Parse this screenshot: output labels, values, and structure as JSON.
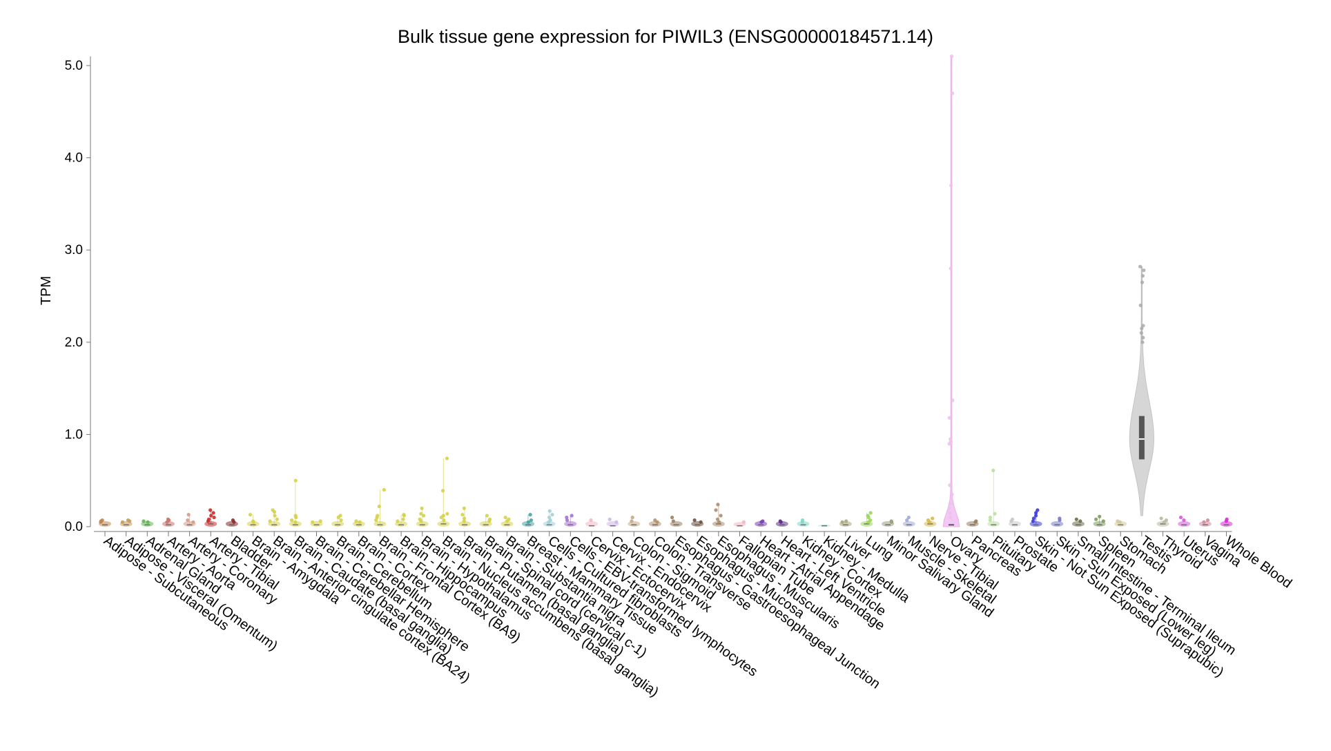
{
  "chart_data": {
    "type": "violin",
    "title": "Bulk tissue gene expression for PIWIL3 (ENSG00000184571.14)",
    "xlabel": "",
    "ylabel": "TPM",
    "ylim": [
      0,
      5.1
    ],
    "yticks": [
      "0.0",
      "1.0",
      "2.0",
      "3.0",
      "4.0",
      "5.0"
    ],
    "grid": false,
    "legend": "none",
    "tissues": [
      {
        "name": "Adipose - Subcutaneous",
        "color": "#c0864e",
        "median": 0.02,
        "max": 0.07,
        "points": [
          0.05,
          0.07,
          0.06
        ]
      },
      {
        "name": "Adipose - Visceral (Omentum)",
        "color": "#c99a58",
        "median": 0.02,
        "max": 0.07,
        "points": [
          0.06,
          0.07,
          0.05
        ]
      },
      {
        "name": "Adrenal Gland",
        "color": "#5fb84e",
        "median": 0.02,
        "max": 0.06,
        "points": [
          0.06,
          0.05
        ]
      },
      {
        "name": "Artery - Aorta",
        "color": "#c9736b",
        "median": 0.02,
        "max": 0.08,
        "points": [
          0.07,
          0.08,
          0.05
        ]
      },
      {
        "name": "Artery - Coronary",
        "color": "#d69a88",
        "median": 0.02,
        "max": 0.13,
        "points": [
          0.13,
          0.07,
          0.05
        ]
      },
      {
        "name": "Artery - Tibial",
        "color": "#cc2a2a",
        "median": 0.03,
        "max": 0.18,
        "points": [
          0.18,
          0.15,
          0.12,
          0.1,
          0.08,
          0.06
        ]
      },
      {
        "name": "Bladder",
        "color": "#8b2a2a",
        "median": 0.02,
        "max": 0.07,
        "points": [
          0.07,
          0.05
        ]
      },
      {
        "name": "Brain - Amygdala",
        "color": "#d4d24a",
        "median": 0.02,
        "max": 0.13,
        "points": [
          0.13,
          0.06,
          0.05
        ]
      },
      {
        "name": "Brain - Anterior cingulate cortex (BA24)",
        "color": "#d4d24a",
        "median": 0.02,
        "max": 0.18,
        "points": [
          0.18,
          0.16,
          0.12,
          0.08,
          0.06
        ]
      },
      {
        "name": "Brain - Caudate (basal ganglia)",
        "color": "#d4d24a",
        "median": 0.02,
        "max": 0.5,
        "points": [
          0.5,
          0.12,
          0.1,
          0.07,
          0.05
        ]
      },
      {
        "name": "Brain - Cerebellar Hemisphere",
        "color": "#d4d24a",
        "median": 0.02,
        "max": 0.06,
        "points": [
          0.06,
          0.05
        ]
      },
      {
        "name": "Brain - Cerebellum",
        "color": "#d4d24a",
        "median": 0.02,
        "max": 0.12,
        "points": [
          0.12,
          0.1,
          0.07
        ]
      },
      {
        "name": "Brain - Cortex",
        "color": "#d4d24a",
        "median": 0.02,
        "max": 0.06,
        "points": [
          0.06,
          0.05
        ]
      },
      {
        "name": "Brain - Frontal Cortex (BA9)",
        "color": "#d4d24a",
        "median": 0.02,
        "max": 0.4,
        "points": [
          0.4,
          0.22,
          0.12,
          0.1,
          0.07
        ]
      },
      {
        "name": "Brain - Hippocampus",
        "color": "#d4d24a",
        "median": 0.02,
        "max": 0.13,
        "points": [
          0.13,
          0.12,
          0.08,
          0.06
        ]
      },
      {
        "name": "Brain - Hypothalamus",
        "color": "#d4d24a",
        "median": 0.02,
        "max": 0.2,
        "points": [
          0.2,
          0.14,
          0.12,
          0.08,
          0.06
        ]
      },
      {
        "name": "Brain - Nucleus accumbens (basal ganglia)",
        "color": "#d4d24a",
        "median": 0.03,
        "max": 0.74,
        "points": [
          0.74,
          0.39,
          0.14,
          0.12,
          0.1,
          0.07
        ]
      },
      {
        "name": "Brain - Putamen (basal ganglia)",
        "color": "#d4d24a",
        "median": 0.02,
        "max": 0.2,
        "points": [
          0.2,
          0.13,
          0.09,
          0.06
        ]
      },
      {
        "name": "Brain - Spinal cord (cervical c-1)",
        "color": "#d4d24a",
        "median": 0.02,
        "max": 0.12,
        "points": [
          0.12,
          0.08,
          0.06
        ]
      },
      {
        "name": "Brain - Substantia nigra",
        "color": "#d4d24a",
        "median": 0.02,
        "max": 0.1,
        "points": [
          0.1,
          0.08,
          0.06
        ]
      },
      {
        "name": "Breast - Mammary Tissue",
        "color": "#45a3a3",
        "median": 0.02,
        "max": 0.13,
        "points": [
          0.13,
          0.07,
          0.05
        ]
      },
      {
        "name": "Cells - Cultured fibroblasts",
        "color": "#9fd1d8",
        "median": 0.02,
        "max": 0.17,
        "points": [
          0.17,
          0.13,
          0.1,
          0.07,
          0.05
        ]
      },
      {
        "name": "Cells - EBV-transformed lymphocytes",
        "color": "#a66fd6",
        "median": 0.02,
        "max": 0.12,
        "points": [
          0.12,
          0.1,
          0.07
        ]
      },
      {
        "name": "Cervix - Ectocervix",
        "color": "#f2b8c6",
        "median": 0.01,
        "max": 0.07,
        "points": [
          0.07
        ]
      },
      {
        "name": "Cervix - Endocervix",
        "color": "#cfb6e3",
        "median": 0.01,
        "max": 0.08,
        "points": [
          0.08,
          0.05
        ]
      },
      {
        "name": "Colon - Sigmoid",
        "color": "#c9a983",
        "median": 0.02,
        "max": 0.1,
        "points": [
          0.1,
          0.06
        ]
      },
      {
        "name": "Colon - Transverse",
        "color": "#b5906a",
        "median": 0.02,
        "max": 0.07,
        "points": [
          0.07,
          0.05
        ]
      },
      {
        "name": "Esophagus - Gastroesophageal Junction",
        "color": "#9b7f5f",
        "median": 0.02,
        "max": 0.1,
        "points": [
          0.1,
          0.06
        ]
      },
      {
        "name": "Esophagus - Mucosa",
        "color": "#6b4f3a",
        "median": 0.02,
        "max": 0.07,
        "points": [
          0.07,
          0.05
        ]
      },
      {
        "name": "Esophagus - Muscularis",
        "color": "#ad8e71",
        "median": 0.03,
        "max": 0.24,
        "points": [
          0.24,
          0.18,
          0.12,
          0.08,
          0.05
        ]
      },
      {
        "name": "Fallopian Tube",
        "color": "#f0b4c0",
        "median": 0.01,
        "max": 0.05,
        "points": [
          0.05
        ]
      },
      {
        "name": "Heart - Atrial Appendage",
        "color": "#7b3fb5",
        "median": 0.02,
        "max": 0.06,
        "points": [
          0.06,
          0.05
        ]
      },
      {
        "name": "Heart - Left Ventricle",
        "color": "#5f2d8c",
        "median": 0.02,
        "max": 0.06,
        "points": [
          0.06,
          0.05
        ]
      },
      {
        "name": "Kidney - Cortex",
        "color": "#7fd8c8",
        "median": 0.02,
        "max": 0.07,
        "points": [
          0.07,
          0.05
        ]
      },
      {
        "name": "Kidney - Medulla",
        "color": "#a8e0d8",
        "median": 0.01,
        "max": 0.02,
        "points": []
      },
      {
        "name": "Liver",
        "color": "#a8a878",
        "median": 0.02,
        "max": 0.06,
        "points": [
          0.06,
          0.05
        ]
      },
      {
        "name": "Lung",
        "color": "#9fd65a",
        "median": 0.03,
        "max": 0.15,
        "points": [
          0.15,
          0.12,
          0.1,
          0.07,
          0.05
        ]
      },
      {
        "name": "Minor Salivary Gland",
        "color": "#9b9f7f",
        "median": 0.02,
        "max": 0.06,
        "points": [
          0.06,
          0.05
        ]
      },
      {
        "name": "Muscle - Skeletal",
        "color": "#a0a8d8",
        "median": 0.02,
        "max": 0.1,
        "points": [
          0.1,
          0.07
        ]
      },
      {
        "name": "Nerve - Tibial",
        "color": "#d6b84a",
        "median": 0.03,
        "max": 0.09,
        "points": [
          0.09,
          0.07,
          0.05
        ]
      },
      {
        "name": "Ovary",
        "color": "#f0c0f0",
        "median": 0.02,
        "max": 5.1,
        "points": [
          5.1,
          4.7,
          3.7,
          2.8,
          1.37,
          1.18,
          0.95,
          0.92,
          0.9,
          0.45,
          0.35,
          0.3,
          0.25,
          0.2,
          0.15,
          0.1
        ]
      },
      {
        "name": "Pancreas",
        "color": "#9b7f5f",
        "median": 0.02,
        "max": 0.06,
        "points": [
          0.06,
          0.05
        ]
      },
      {
        "name": "Pituitary",
        "color": "#b8e0a0",
        "median": 0.02,
        "max": 0.61,
        "points": [
          0.61,
          0.14,
          0.1,
          0.07
        ]
      },
      {
        "name": "Prostate",
        "color": "#c8c8c8",
        "median": 0.02,
        "max": 0.08,
        "points": [
          0.08,
          0.06
        ]
      },
      {
        "name": "Skin - Not Sun Exposed (Suprapubic)",
        "color": "#3a3ad6",
        "median": 0.02,
        "max": 0.18,
        "points": [
          0.18,
          0.15,
          0.12,
          0.09,
          0.06
        ]
      },
      {
        "name": "Skin - Sun Exposed (Lower leg)",
        "color": "#7a7ad0",
        "median": 0.02,
        "max": 0.09,
        "points": [
          0.09,
          0.07
        ]
      },
      {
        "name": "Small Intestine - Terminal Ileum",
        "color": "#6b6b4a",
        "median": 0.02,
        "max": 0.08,
        "points": [
          0.08,
          0.06
        ]
      },
      {
        "name": "Spleen",
        "color": "#7f9b5f",
        "median": 0.02,
        "max": 0.11,
        "points": [
          0.11,
          0.08,
          0.06
        ]
      },
      {
        "name": "Stomach",
        "color": "#d6c89b",
        "median": 0.02,
        "max": 0.06,
        "points": [
          0.06,
          0.05
        ]
      },
      {
        "name": "Testis",
        "color": "#aaaaaa",
        "median": 0.95,
        "q1": 0.73,
        "q3": 1.2,
        "min": 0.12,
        "max": 2.82,
        "points": [
          2.82,
          2.78,
          2.72,
          2.65,
          2.4,
          2.18,
          2.15,
          2.1,
          2.05,
          2.0
        ]
      },
      {
        "name": "Thyroid",
        "color": "#b8b8a0",
        "median": 0.03,
        "max": 0.09,
        "points": [
          0.09,
          0.07,
          0.05
        ]
      },
      {
        "name": "Uterus",
        "color": "#d65ad6",
        "median": 0.02,
        "max": 0.1,
        "points": [
          0.1,
          0.07
        ]
      },
      {
        "name": "Vagina",
        "color": "#d68a9b",
        "median": 0.02,
        "max": 0.07,
        "points": [
          0.07,
          0.05
        ]
      },
      {
        "name": "Whole Blood",
        "color": "#d62ad6",
        "median": 0.02,
        "max": 0.08,
        "points": [
          0.08,
          0.06
        ]
      }
    ]
  }
}
